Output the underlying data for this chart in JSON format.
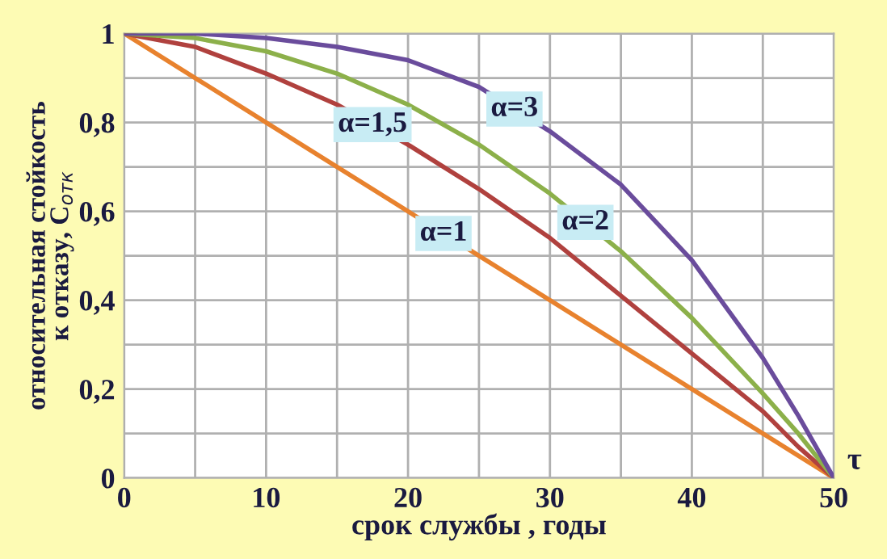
{
  "chart_data": {
    "type": "line",
    "xlabel": "срок службы , годы",
    "ylabel": "относительная стойкость\nк отказу, C$_{отк}$",
    "x": [
      0,
      5,
      10,
      15,
      20,
      25,
      30,
      35,
      40,
      45,
      47.5,
      50
    ],
    "series": [
      {
        "color": "#e8822e",
        "values": [
          1,
          0.9,
          0.8,
          0.7,
          0.6,
          0.5,
          0.4,
          0.3,
          0.2,
          0.1,
          0.05,
          0
        ]
      },
      {
        "color": "#b0413e",
        "values": [
          1,
          0.97,
          0.91,
          0.84,
          0.75,
          0.65,
          0.54,
          0.41,
          0.28,
          0.15,
          0.07,
          0
        ]
      },
      {
        "color": "#8cb04a",
        "values": [
          1,
          0.99,
          0.96,
          0.91,
          0.84,
          0.75,
          0.64,
          0.51,
          0.36,
          0.19,
          0.1,
          0
        ]
      },
      {
        "color": "#6a4c9c",
        "values": [
          1,
          1,
          0.99,
          0.97,
          0.94,
          0.88,
          0.78,
          0.66,
          0.49,
          0.27,
          0.14,
          0
        ]
      }
    ],
    "annotations": [
      {
        "text": "α=1",
        "x": 22.5,
        "y": 0.55
      },
      {
        "text": "α=1,5",
        "x": 17.5,
        "y": 0.795
      },
      {
        "text": "α=2",
        "x": 32.5,
        "y": 0.575
      },
      {
        "text": "α=3",
        "x": 27.5,
        "y": 0.83
      },
      "τ"
    ],
    "xlim": [
      0,
      50
    ],
    "ylim": [
      0,
      1
    ],
    "xticks": [
      0,
      {
        "value": 5,
        "label": null
      },
      10,
      {
        "value": 15,
        "label": null
      },
      20,
      {
        "value": 25,
        "label": null
      },
      30,
      {
        "value": 35,
        "label": null
      },
      40,
      {
        "value": 45,
        "label": null
      },
      50
    ],
    "yticks": [
      0,
      {
        "value": 0.1,
        "label": null
      },
      {
        "value": 0.2,
        "label": "0,2"
      },
      {
        "value": 0.3,
        "label": null
      },
      {
        "value": 0.4,
        "label": "0,4"
      },
      {
        "value": 0.5,
        "label": null
      },
      {
        "value": 0.6,
        "label": "0,6"
      },
      {
        "value": 0.7,
        "label": null
      },
      {
        "value": 0.8,
        "label": "0,8"
      },
      {
        "value": 0.9,
        "label": null
      },
      1
    ],
    "grid": true,
    "legend": false,
    "marker": "none",
    "line_style": "solid"
  }
}
